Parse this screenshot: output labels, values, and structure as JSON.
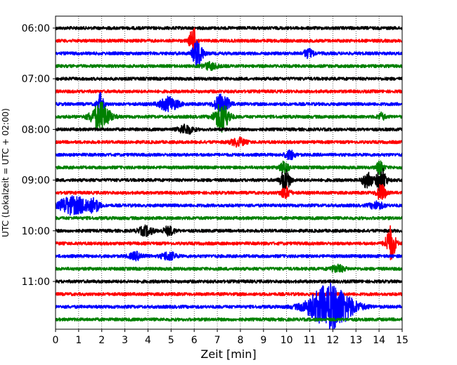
{
  "chart_data": {
    "type": "line",
    "title": "",
    "xlabel": "Zeit  [min]",
    "ylabel": "UTC (Lokalzeit = UTC + 02:00)",
    "xlim": [
      0,
      15
    ],
    "x_ticks": [
      0,
      1,
      2,
      3,
      4,
      5,
      6,
      7,
      8,
      9,
      10,
      11,
      12,
      13,
      14,
      15
    ],
    "y_tick_labels": [
      "06:00",
      "07:00",
      "08:00",
      "09:00",
      "10:00",
      "11:00"
    ],
    "grid": "vertical dotted lines at each minute",
    "row_interval_minutes": 15,
    "rows": [
      {
        "start": "06:00",
        "color": "#000000"
      },
      {
        "start": "06:15",
        "color": "#ff0000"
      },
      {
        "start": "06:30",
        "color": "#0000ff"
      },
      {
        "start": "06:45",
        "color": "#008000"
      },
      {
        "start": "07:00",
        "color": "#000000"
      },
      {
        "start": "07:15",
        "color": "#ff0000"
      },
      {
        "start": "07:30",
        "color": "#0000ff"
      },
      {
        "start": "07:45",
        "color": "#008000"
      },
      {
        "start": "08:00",
        "color": "#000000"
      },
      {
        "start": "08:15",
        "color": "#ff0000"
      },
      {
        "start": "08:30",
        "color": "#0000ff"
      },
      {
        "start": "08:45",
        "color": "#008000"
      },
      {
        "start": "09:00",
        "color": "#000000"
      },
      {
        "start": "09:15",
        "color": "#ff0000"
      },
      {
        "start": "09:30",
        "color": "#0000ff"
      },
      {
        "start": "09:45",
        "color": "#008000"
      },
      {
        "start": "10:00",
        "color": "#000000"
      },
      {
        "start": "10:15",
        "color": "#ff0000"
      },
      {
        "start": "10:30",
        "color": "#0000ff"
      },
      {
        "start": "10:45",
        "color": "#008000"
      },
      {
        "start": "11:00",
        "color": "#000000"
      },
      {
        "start": "11:15",
        "color": "#ff0000"
      },
      {
        "start": "11:30",
        "color": "#0000ff"
      },
      {
        "start": "11:45",
        "color": "#008000"
      }
    ],
    "events": [
      {
        "row": 1,
        "t": 5.95,
        "amp": 1.2,
        "dur": 0.15
      },
      {
        "row": 2,
        "t": 6.15,
        "amp": 1.4,
        "dur": 0.2
      },
      {
        "row": 2,
        "t": 10.95,
        "amp": 0.4,
        "dur": 0.2
      },
      {
        "row": 3,
        "t": 6.7,
        "amp": 0.3,
        "dur": 0.3
      },
      {
        "row": 6,
        "t": 1.95,
        "amp": 0.9,
        "dur": 0.15
      },
      {
        "row": 6,
        "t": 4.9,
        "amp": 0.6,
        "dur": 0.4
      },
      {
        "row": 6,
        "t": 7.2,
        "amp": 0.9,
        "dur": 0.3
      },
      {
        "row": 7,
        "t": 1.95,
        "amp": 1.2,
        "dur": 0.4
      },
      {
        "row": 7,
        "t": 7.2,
        "amp": 1.3,
        "dur": 0.3
      },
      {
        "row": 7,
        "t": 14.1,
        "amp": 0.3,
        "dur": 0.15
      },
      {
        "row": 8,
        "t": 5.65,
        "amp": 0.4,
        "dur": 0.3
      },
      {
        "row": 9,
        "t": 7.9,
        "amp": 0.35,
        "dur": 0.3
      },
      {
        "row": 10,
        "t": 10.15,
        "amp": 0.4,
        "dur": 0.2
      },
      {
        "row": 11,
        "t": 9.9,
        "amp": 0.5,
        "dur": 0.2
      },
      {
        "row": 11,
        "t": 14.05,
        "amp": 0.6,
        "dur": 0.15
      },
      {
        "row": 12,
        "t": 9.95,
        "amp": 1.0,
        "dur": 0.2
      },
      {
        "row": 12,
        "t": 13.5,
        "amp": 0.8,
        "dur": 0.2
      },
      {
        "row": 12,
        "t": 14.1,
        "amp": 1.1,
        "dur": 0.2
      },
      {
        "row": 13,
        "t": 9.95,
        "amp": 0.5,
        "dur": 0.2
      },
      {
        "row": 13,
        "t": 14.1,
        "amp": 0.7,
        "dur": 0.2
      },
      {
        "row": 14,
        "t": 0.55,
        "amp": 0.7,
        "dur": 0.4
      },
      {
        "row": 14,
        "t": 1.2,
        "amp": 0.6,
        "dur": 0.4
      },
      {
        "row": 14,
        "t": 1.7,
        "amp": 0.5,
        "dur": 0.2
      },
      {
        "row": 14,
        "t": 13.9,
        "amp": 0.3,
        "dur": 0.3
      },
      {
        "row": 16,
        "t": 3.9,
        "amp": 0.4,
        "dur": 0.3
      },
      {
        "row": 16,
        "t": 4.9,
        "amp": 0.35,
        "dur": 0.25
      },
      {
        "row": 17,
        "t": 14.5,
        "amp": 1.5,
        "dur": 0.2
      },
      {
        "row": 18,
        "t": 3.5,
        "amp": 0.3,
        "dur": 0.3
      },
      {
        "row": 18,
        "t": 4.9,
        "amp": 0.35,
        "dur": 0.3
      },
      {
        "row": 19,
        "t": 12.2,
        "amp": 0.3,
        "dur": 0.3
      },
      {
        "row": 22,
        "t": 11.9,
        "amp": 2.0,
        "dur": 0.9
      }
    ]
  }
}
